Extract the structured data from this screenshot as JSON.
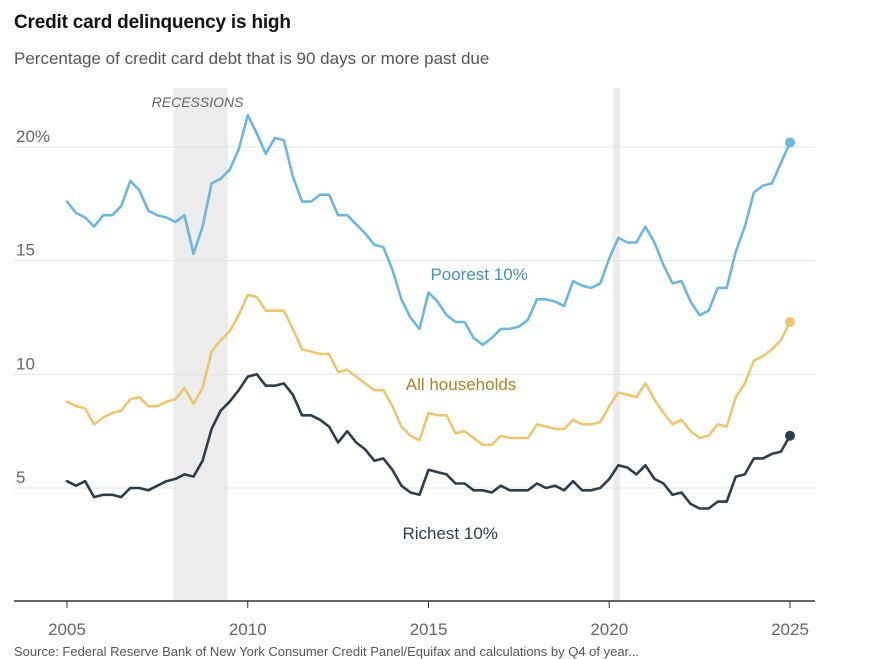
{
  "title": "Credit card delinquency is high",
  "subtitle": "Percentage of credit card debt that is 90 days or more past due",
  "source_note": "Source: Federal Reserve Bank of New York Consumer Credit Panel/Equifax and calculations by Q4 of year...",
  "chart_data": {
    "type": "line",
    "title": "Credit card delinquency is high",
    "subtitle": "Percentage of credit card debt that is 90 days or more past due",
    "xlabel": "",
    "ylabel": "",
    "xlim": [
      2005,
      2025
    ],
    "ylim": [
      0,
      22
    ],
    "y_ticks": [
      5,
      10,
      15,
      20
    ],
    "y_tick_labels": [
      "5",
      "10",
      "15",
      "20%"
    ],
    "x_ticks": [
      2005,
      2010,
      2015,
      2020,
      2025
    ],
    "x_tick_labels": [
      "2005",
      "2010",
      "2015",
      "2020",
      "2025"
    ],
    "grid": true,
    "recessions": {
      "label": "RECESSIONS",
      "periods": [
        [
          2007.95,
          2009.45
        ],
        [
          2020.1,
          2020.3
        ]
      ]
    },
    "series": [
      {
        "name": "Poorest 10%",
        "label": "Poorest 10%",
        "color": "#6fb6db",
        "label_color": "#4a8fb0",
        "x": [
          2005.0,
          2005.25,
          2005.5,
          2005.75,
          2006.0,
          2006.25,
          2006.5,
          2006.75,
          2007.0,
          2007.25,
          2007.5,
          2007.75,
          2008.0,
          2008.25,
          2008.5,
          2008.75,
          2009.0,
          2009.25,
          2009.5,
          2009.75,
          2010.0,
          2010.25,
          2010.5,
          2010.75,
          2011.0,
          2011.25,
          2011.5,
          2011.75,
          2012.0,
          2012.25,
          2012.5,
          2012.75,
          2013.0,
          2013.25,
          2013.5,
          2013.75,
          2014.0,
          2014.25,
          2014.5,
          2014.75,
          2015.0,
          2015.25,
          2015.5,
          2015.75,
          2016.0,
          2016.25,
          2016.5,
          2016.75,
          2017.0,
          2017.25,
          2017.5,
          2017.75,
          2018.0,
          2018.25,
          2018.5,
          2018.75,
          2019.0,
          2019.25,
          2019.5,
          2019.75,
          2020.0,
          2020.25,
          2020.5,
          2020.75,
          2021.0,
          2021.25,
          2021.5,
          2021.75,
          2022.0,
          2022.25,
          2022.5,
          2022.75,
          2023.0,
          2023.25,
          2023.5,
          2023.75,
          2024.0,
          2024.25,
          2024.5,
          2024.75,
          2025.0
        ],
        "values": [
          17.6,
          17.1,
          16.9,
          16.5,
          17.0,
          17.0,
          17.4,
          18.5,
          18.1,
          17.2,
          17.0,
          16.9,
          16.7,
          17.0,
          15.3,
          16.5,
          18.4,
          18.6,
          19.0,
          19.9,
          21.4,
          20.6,
          19.7,
          20.4,
          20.3,
          18.7,
          17.6,
          17.6,
          17.9,
          17.9,
          17.0,
          17.0,
          16.6,
          16.2,
          15.7,
          15.6,
          14.6,
          13.3,
          12.5,
          12.0,
          13.6,
          13.2,
          12.6,
          12.3,
          12.3,
          11.6,
          11.3,
          11.6,
          12.0,
          12.0,
          12.1,
          12.4,
          13.3,
          13.3,
          13.2,
          13.0,
          14.1,
          13.9,
          13.8,
          14.0,
          15.1,
          16.0,
          15.8,
          15.8,
          16.5,
          15.8,
          14.8,
          14.0,
          14.1,
          13.2,
          12.6,
          12.8,
          13.8,
          13.8,
          15.4,
          16.5,
          18.0,
          18.3,
          18.4,
          19.3,
          20.2
        ]
      },
      {
        "name": "All households",
        "label": "All households",
        "color": "#ecc771",
        "label_color": "#a8852a",
        "x": [
          2005.0,
          2005.25,
          2005.5,
          2005.75,
          2006.0,
          2006.25,
          2006.5,
          2006.75,
          2007.0,
          2007.25,
          2007.5,
          2007.75,
          2008.0,
          2008.25,
          2008.5,
          2008.75,
          2009.0,
          2009.25,
          2009.5,
          2009.75,
          2010.0,
          2010.25,
          2010.5,
          2010.75,
          2011.0,
          2011.25,
          2011.5,
          2011.75,
          2012.0,
          2012.25,
          2012.5,
          2012.75,
          2013.0,
          2013.25,
          2013.5,
          2013.75,
          2014.0,
          2014.25,
          2014.5,
          2014.75,
          2015.0,
          2015.25,
          2015.5,
          2015.75,
          2016.0,
          2016.25,
          2016.5,
          2016.75,
          2017.0,
          2017.25,
          2017.5,
          2017.75,
          2018.0,
          2018.25,
          2018.5,
          2018.75,
          2019.0,
          2019.25,
          2019.5,
          2019.75,
          2020.0,
          2020.25,
          2020.5,
          2020.75,
          2021.0,
          2021.25,
          2021.5,
          2021.75,
          2022.0,
          2022.25,
          2022.5,
          2022.75,
          2023.0,
          2023.25,
          2023.5,
          2023.75,
          2024.0,
          2024.25,
          2024.5,
          2024.75,
          2025.0
        ],
        "values": [
          8.8,
          8.6,
          8.5,
          7.8,
          8.1,
          8.3,
          8.4,
          8.9,
          9.0,
          8.6,
          8.6,
          8.8,
          8.9,
          9.4,
          8.7,
          9.4,
          11.0,
          11.5,
          11.9,
          12.6,
          13.5,
          13.4,
          12.8,
          12.8,
          12.8,
          12.0,
          11.1,
          11.0,
          10.9,
          10.9,
          10.1,
          10.2,
          9.9,
          9.6,
          9.3,
          9.3,
          8.6,
          7.7,
          7.3,
          7.1,
          8.3,
          8.2,
          8.2,
          7.4,
          7.5,
          7.2,
          6.9,
          6.9,
          7.3,
          7.2,
          7.2,
          7.2,
          7.8,
          7.7,
          7.6,
          7.6,
          8.0,
          7.8,
          7.8,
          7.9,
          8.6,
          9.2,
          9.1,
          9.0,
          9.6,
          8.9,
          8.3,
          7.8,
          8.0,
          7.5,
          7.2,
          7.3,
          7.8,
          7.7,
          9.0,
          9.6,
          10.6,
          10.8,
          11.1,
          11.5,
          12.3
        ]
      },
      {
        "name": "Richest 10%",
        "label": "Richest 10%",
        "color": "#2d3e4a",
        "label_color": "#2d3e4a",
        "x": [
          2005.0,
          2005.25,
          2005.5,
          2005.75,
          2006.0,
          2006.25,
          2006.5,
          2006.75,
          2007.0,
          2007.25,
          2007.5,
          2007.75,
          2008.0,
          2008.25,
          2008.5,
          2008.75,
          2009.0,
          2009.25,
          2009.5,
          2009.75,
          2010.0,
          2010.25,
          2010.5,
          2010.75,
          2011.0,
          2011.25,
          2011.5,
          2011.75,
          2012.0,
          2012.25,
          2012.5,
          2012.75,
          2013.0,
          2013.25,
          2013.5,
          2013.75,
          2014.0,
          2014.25,
          2014.5,
          2014.75,
          2015.0,
          2015.25,
          2015.5,
          2015.75,
          2016.0,
          2016.25,
          2016.5,
          2016.75,
          2017.0,
          2017.25,
          2017.5,
          2017.75,
          2018.0,
          2018.25,
          2018.5,
          2018.75,
          2019.0,
          2019.25,
          2019.5,
          2019.75,
          2020.0,
          2020.25,
          2020.5,
          2020.75,
          2021.0,
          2021.25,
          2021.5,
          2021.75,
          2022.0,
          2022.25,
          2022.5,
          2022.75,
          2023.0,
          2023.25,
          2023.5,
          2023.75,
          2024.0,
          2024.25,
          2024.5,
          2024.75,
          2025.0
        ],
        "values": [
          5.3,
          5.1,
          5.3,
          4.6,
          4.7,
          4.7,
          4.6,
          5.0,
          5.0,
          4.9,
          5.1,
          5.3,
          5.4,
          5.6,
          5.5,
          6.2,
          7.6,
          8.4,
          8.8,
          9.3,
          9.9,
          10.0,
          9.5,
          9.5,
          9.6,
          9.1,
          8.2,
          8.2,
          8.0,
          7.7,
          7.0,
          7.5,
          7.0,
          6.7,
          6.2,
          6.3,
          5.8,
          5.1,
          4.8,
          4.7,
          5.8,
          5.7,
          5.6,
          5.2,
          5.2,
          4.9,
          4.9,
          4.8,
          5.1,
          4.9,
          4.9,
          4.9,
          5.2,
          5.0,
          5.1,
          4.9,
          5.3,
          4.9,
          4.9,
          5.0,
          5.4,
          6.0,
          5.9,
          5.6,
          6.0,
          5.4,
          5.2,
          4.7,
          4.8,
          4.3,
          4.1,
          4.1,
          4.4,
          4.4,
          5.5,
          5.6,
          6.3,
          6.3,
          6.5,
          6.6,
          7.3
        ]
      }
    ],
    "label_positions": {
      "Poorest 10%": [
        2016.4,
        14.15
      ],
      "All households": [
        2015.9,
        9.3
      ],
      "Richest 10%": [
        2015.6,
        2.75
      ]
    }
  }
}
